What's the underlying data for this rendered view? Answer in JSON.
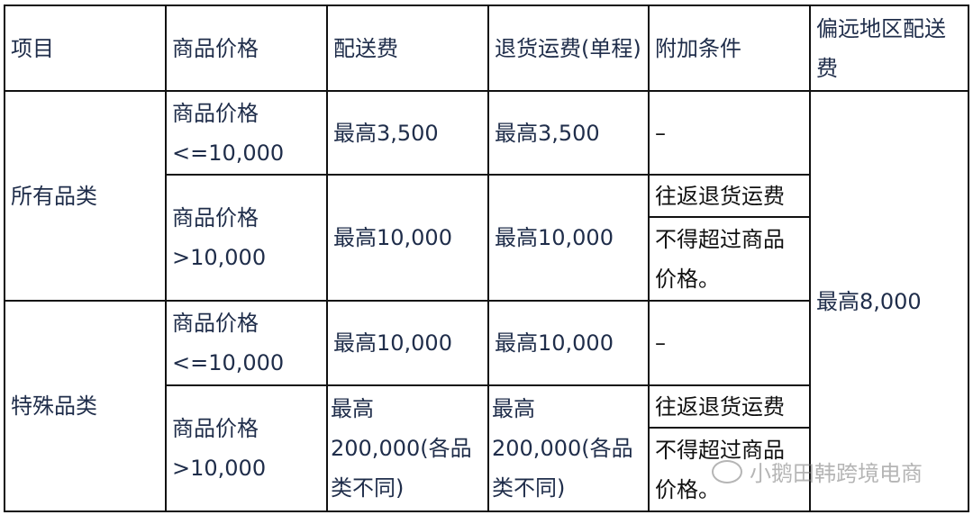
{
  "header": [
    "项目",
    "商品价格",
    "配送费",
    "退货运费(单程)",
    "附加条件",
    "偏远地区配送费"
  ],
  "groups": [
    {
      "category": "所有品类",
      "rows": [
        {
          "price": "商品价格<=10,000",
          "delivery": "最高3,500",
          "return": "最高3,500",
          "condition": "–"
        },
        {
          "price": "商品价格>10,000",
          "delivery": "最高10,000",
          "return": "最高10,000",
          "condition_a": "往返退货运费",
          "condition_b": "不得超过商品价格。"
        }
      ]
    },
    {
      "category": "特殊品类",
      "rows": [
        {
          "price": "商品价格<=10,000",
          "delivery": "最高10,000",
          "return": "最高10,000",
          "condition": "–"
        },
        {
          "price": "商品价格>10,000",
          "delivery": "最高200,000(各品类不同)",
          "return": "最高200,000(各品类不同)",
          "condition_a": "往返退货运费",
          "condition_b": "不得超过商品价格。"
        }
      ]
    }
  ],
  "remote_fee": "最高8,000",
  "watermark": "小鹅田韩跨境电商"
}
